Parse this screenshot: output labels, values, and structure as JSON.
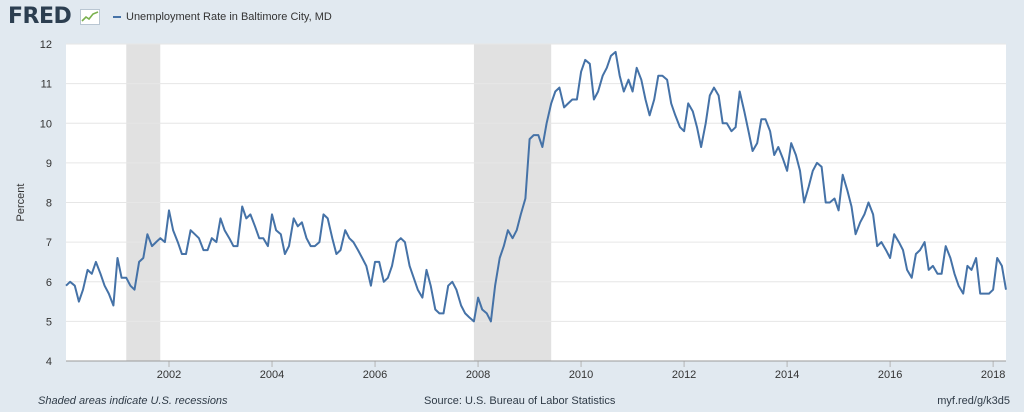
{
  "header": {
    "logo_text": "FRED",
    "series_label": "Unemployment Rate in Baltimore City, MD"
  },
  "footer": {
    "left": "Shaded areas indicate U.S. recessions",
    "source": "Source: U.S. Bureau of Labor Statistics",
    "link": "myf.red/g/k3d5"
  },
  "colors": {
    "line": "#4572a7",
    "recession": "#e1e1e1",
    "background": "#e1e9f0",
    "plot": "#ffffff",
    "grid": "#e6e6e6"
  },
  "icons": {
    "logo_sparkline": "sparkline-icon"
  },
  "chart_data": {
    "type": "line",
    "ylabel": "Percent",
    "xlabel": "",
    "ylim": [
      4,
      12
    ],
    "xlim": [
      2000.0,
      2018.25
    ],
    "yticks": [
      "4",
      "5",
      "6",
      "7",
      "8",
      "9",
      "10",
      "11",
      "12"
    ],
    "xticks": [
      "2002",
      "2004",
      "2006",
      "2008",
      "2010",
      "2012",
      "2014",
      "2016",
      "2018"
    ],
    "grid": true,
    "legend": "top-left",
    "recessions": [
      {
        "start": 2001.17,
        "end": 2001.83
      },
      {
        "start": 2007.92,
        "end": 2009.42
      }
    ],
    "series": [
      {
        "name": "Unemployment Rate in Baltimore City, MD",
        "points": [
          [
            2000.0,
            5.9
          ],
          [
            2000.08,
            6.0
          ],
          [
            2000.17,
            5.9
          ],
          [
            2000.25,
            5.5
          ],
          [
            2000.33,
            5.8
          ],
          [
            2000.42,
            6.3
          ],
          [
            2000.5,
            6.2
          ],
          [
            2000.58,
            6.5
          ],
          [
            2000.67,
            6.2
          ],
          [
            2000.75,
            5.9
          ],
          [
            2000.83,
            5.7
          ],
          [
            2000.92,
            5.4
          ],
          [
            2001.0,
            6.6
          ],
          [
            2001.08,
            6.1
          ],
          [
            2001.17,
            6.1
          ],
          [
            2001.25,
            5.9
          ],
          [
            2001.33,
            5.8
          ],
          [
            2001.42,
            6.5
          ],
          [
            2001.5,
            6.6
          ],
          [
            2001.58,
            7.2
          ],
          [
            2001.67,
            6.9
          ],
          [
            2001.75,
            7.0
          ],
          [
            2001.83,
            7.1
          ],
          [
            2001.92,
            7.0
          ],
          [
            2002.0,
            7.8
          ],
          [
            2002.08,
            7.3
          ],
          [
            2002.17,
            7.0
          ],
          [
            2002.25,
            6.7
          ],
          [
            2002.33,
            6.7
          ],
          [
            2002.42,
            7.3
          ],
          [
            2002.5,
            7.2
          ],
          [
            2002.58,
            7.1
          ],
          [
            2002.67,
            6.8
          ],
          [
            2002.75,
            6.8
          ],
          [
            2002.83,
            7.1
          ],
          [
            2002.92,
            7.0
          ],
          [
            2003.0,
            7.6
          ],
          [
            2003.08,
            7.3
          ],
          [
            2003.17,
            7.1
          ],
          [
            2003.25,
            6.9
          ],
          [
            2003.33,
            6.9
          ],
          [
            2003.42,
            7.9
          ],
          [
            2003.5,
            7.6
          ],
          [
            2003.58,
            7.7
          ],
          [
            2003.67,
            7.4
          ],
          [
            2003.75,
            7.1
          ],
          [
            2003.83,
            7.1
          ],
          [
            2003.92,
            6.9
          ],
          [
            2004.0,
            7.7
          ],
          [
            2004.08,
            7.3
          ],
          [
            2004.17,
            7.2
          ],
          [
            2004.25,
            6.7
          ],
          [
            2004.33,
            6.9
          ],
          [
            2004.42,
            7.6
          ],
          [
            2004.5,
            7.4
          ],
          [
            2004.58,
            7.5
          ],
          [
            2004.67,
            7.1
          ],
          [
            2004.75,
            6.9
          ],
          [
            2004.83,
            6.9
          ],
          [
            2004.92,
            7.0
          ],
          [
            2005.0,
            7.7
          ],
          [
            2005.08,
            7.6
          ],
          [
            2005.17,
            7.1
          ],
          [
            2005.25,
            6.7
          ],
          [
            2005.33,
            6.8
          ],
          [
            2005.42,
            7.3
          ],
          [
            2005.5,
            7.1
          ],
          [
            2005.58,
            7.0
          ],
          [
            2005.67,
            6.8
          ],
          [
            2005.75,
            6.6
          ],
          [
            2005.83,
            6.4
          ],
          [
            2005.92,
            5.9
          ],
          [
            2006.0,
            6.5
          ],
          [
            2006.08,
            6.5
          ],
          [
            2006.17,
            6.0
          ],
          [
            2006.25,
            6.1
          ],
          [
            2006.33,
            6.4
          ],
          [
            2006.42,
            7.0
          ],
          [
            2006.5,
            7.1
          ],
          [
            2006.58,
            7.0
          ],
          [
            2006.67,
            6.4
          ],
          [
            2006.75,
            6.1
          ],
          [
            2006.83,
            5.8
          ],
          [
            2006.92,
            5.6
          ],
          [
            2007.0,
            6.3
          ],
          [
            2007.08,
            5.9
          ],
          [
            2007.17,
            5.3
          ],
          [
            2007.25,
            5.2
          ],
          [
            2007.33,
            5.2
          ],
          [
            2007.42,
            5.9
          ],
          [
            2007.5,
            6.0
          ],
          [
            2007.58,
            5.8
          ],
          [
            2007.67,
            5.4
          ],
          [
            2007.75,
            5.2
          ],
          [
            2007.83,
            5.1
          ],
          [
            2007.92,
            5.0
          ],
          [
            2008.0,
            5.6
          ],
          [
            2008.08,
            5.3
          ],
          [
            2008.17,
            5.2
          ],
          [
            2008.25,
            5.0
          ],
          [
            2008.33,
            5.9
          ],
          [
            2008.42,
            6.6
          ],
          [
            2008.5,
            6.9
          ],
          [
            2008.58,
            7.3
          ],
          [
            2008.67,
            7.1
          ],
          [
            2008.75,
            7.3
          ],
          [
            2008.83,
            7.7
          ],
          [
            2008.92,
            8.1
          ],
          [
            2009.0,
            9.6
          ],
          [
            2009.08,
            9.7
          ],
          [
            2009.17,
            9.7
          ],
          [
            2009.25,
            9.4
          ],
          [
            2009.33,
            10.0
          ],
          [
            2009.42,
            10.5
          ],
          [
            2009.5,
            10.8
          ],
          [
            2009.58,
            10.9
          ],
          [
            2009.67,
            10.4
          ],
          [
            2009.75,
            10.5
          ],
          [
            2009.83,
            10.6
          ],
          [
            2009.92,
            10.6
          ],
          [
            2010.0,
            11.3
          ],
          [
            2010.08,
            11.6
          ],
          [
            2010.17,
            11.5
          ],
          [
            2010.25,
            10.6
          ],
          [
            2010.33,
            10.8
          ],
          [
            2010.42,
            11.2
          ],
          [
            2010.5,
            11.4
          ],
          [
            2010.58,
            11.7
          ],
          [
            2010.67,
            11.8
          ],
          [
            2010.75,
            11.2
          ],
          [
            2010.83,
            10.8
          ],
          [
            2010.92,
            11.1
          ],
          [
            2011.0,
            10.8
          ],
          [
            2011.08,
            11.4
          ],
          [
            2011.17,
            11.1
          ],
          [
            2011.25,
            10.6
          ],
          [
            2011.33,
            10.2
          ],
          [
            2011.42,
            10.6
          ],
          [
            2011.5,
            11.2
          ],
          [
            2011.58,
            11.2
          ],
          [
            2011.67,
            11.1
          ],
          [
            2011.75,
            10.5
          ],
          [
            2011.83,
            10.2
          ],
          [
            2011.92,
            9.9
          ],
          [
            2012.0,
            9.8
          ],
          [
            2012.08,
            10.5
          ],
          [
            2012.17,
            10.3
          ],
          [
            2012.25,
            9.9
          ],
          [
            2012.33,
            9.4
          ],
          [
            2012.42,
            10.0
          ],
          [
            2012.5,
            10.7
          ],
          [
            2012.58,
            10.9
          ],
          [
            2012.67,
            10.7
          ],
          [
            2012.75,
            10.0
          ],
          [
            2012.83,
            10.0
          ],
          [
            2012.92,
            9.8
          ],
          [
            2013.0,
            9.9
          ],
          [
            2013.08,
            10.8
          ],
          [
            2013.17,
            10.3
          ],
          [
            2013.25,
            9.8
          ],
          [
            2013.33,
            9.3
          ],
          [
            2013.42,
            9.5
          ],
          [
            2013.5,
            10.1
          ],
          [
            2013.58,
            10.1
          ],
          [
            2013.67,
            9.8
          ],
          [
            2013.75,
            9.2
          ],
          [
            2013.83,
            9.4
          ],
          [
            2013.92,
            9.1
          ],
          [
            2014.0,
            8.8
          ],
          [
            2014.08,
            9.5
          ],
          [
            2014.17,
            9.2
          ],
          [
            2014.25,
            8.8
          ],
          [
            2014.33,
            8.0
          ],
          [
            2014.42,
            8.4
          ],
          [
            2014.5,
            8.8
          ],
          [
            2014.58,
            9.0
          ],
          [
            2014.67,
            8.9
          ],
          [
            2014.75,
            8.0
          ],
          [
            2014.83,
            8.0
          ],
          [
            2014.92,
            8.1
          ],
          [
            2015.0,
            7.8
          ],
          [
            2015.08,
            8.7
          ],
          [
            2015.17,
            8.3
          ],
          [
            2015.25,
            7.9
          ],
          [
            2015.33,
            7.2
          ],
          [
            2015.42,
            7.5
          ],
          [
            2015.5,
            7.7
          ],
          [
            2015.58,
            8.0
          ],
          [
            2015.67,
            7.7
          ],
          [
            2015.75,
            6.9
          ],
          [
            2015.83,
            7.0
          ],
          [
            2015.92,
            6.8
          ],
          [
            2016.0,
            6.6
          ],
          [
            2016.08,
            7.2
          ],
          [
            2016.17,
            7.0
          ],
          [
            2016.25,
            6.8
          ],
          [
            2016.33,
            6.3
          ],
          [
            2016.42,
            6.1
          ],
          [
            2016.5,
            6.7
          ],
          [
            2016.58,
            6.8
          ],
          [
            2016.67,
            7.0
          ],
          [
            2016.75,
            6.3
          ],
          [
            2016.83,
            6.4
          ],
          [
            2016.92,
            6.2
          ],
          [
            2017.0,
            6.2
          ],
          [
            2017.08,
            6.9
          ],
          [
            2017.17,
            6.6
          ],
          [
            2017.25,
            6.2
          ],
          [
            2017.33,
            5.9
          ],
          [
            2017.42,
            5.7
          ],
          [
            2017.5,
            6.4
          ],
          [
            2017.58,
            6.3
          ],
          [
            2017.67,
            6.6
          ],
          [
            2017.75,
            5.7
          ],
          [
            2017.83,
            5.7
          ],
          [
            2017.92,
            5.7
          ],
          [
            2018.0,
            5.8
          ],
          [
            2018.08,
            6.6
          ],
          [
            2018.17,
            6.4
          ],
          [
            2018.25,
            5.8
          ]
        ]
      }
    ]
  }
}
